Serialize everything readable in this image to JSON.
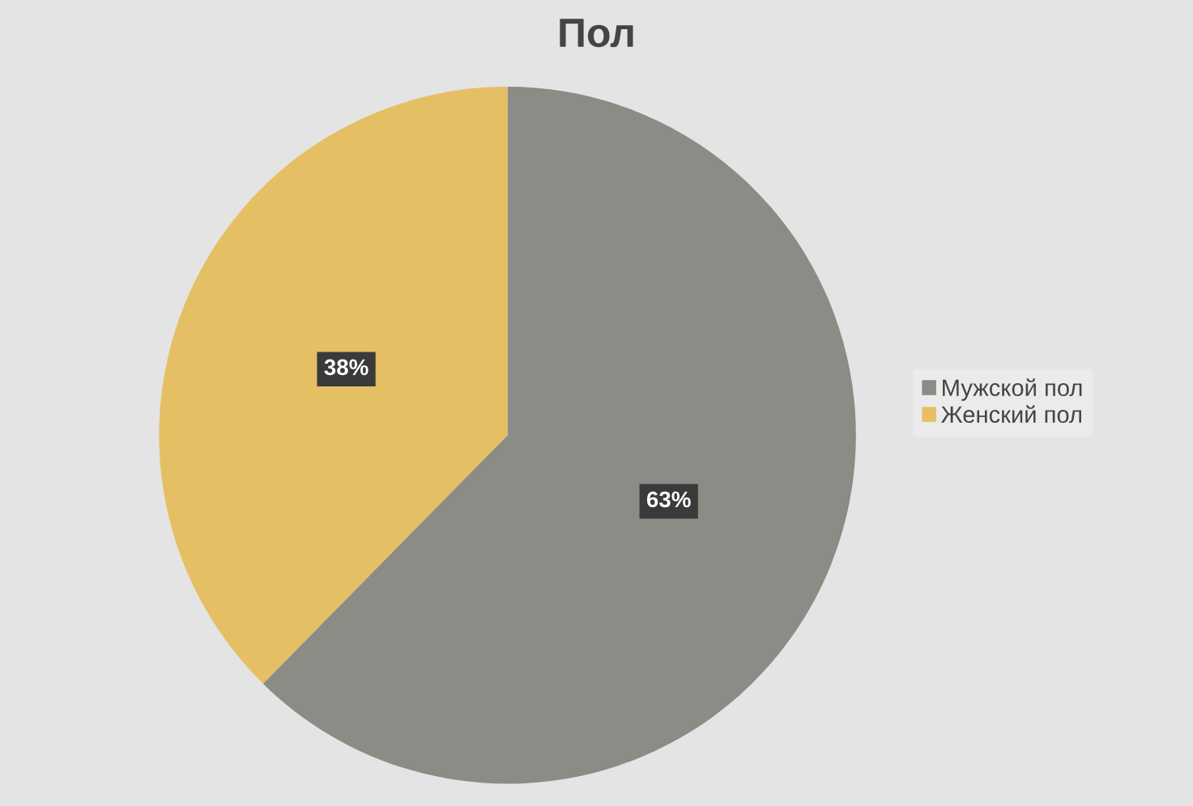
{
  "chart_data": {
    "type": "pie",
    "title": "Пол",
    "categories": [
      "Мужской пол",
      "Женский пол"
    ],
    "values": [
      63,
      38
    ],
    "colors": [
      "#8c8c86",
      "#e5bf63"
    ],
    "value_labels": [
      "63%",
      "38%"
    ],
    "legend": "right"
  }
}
